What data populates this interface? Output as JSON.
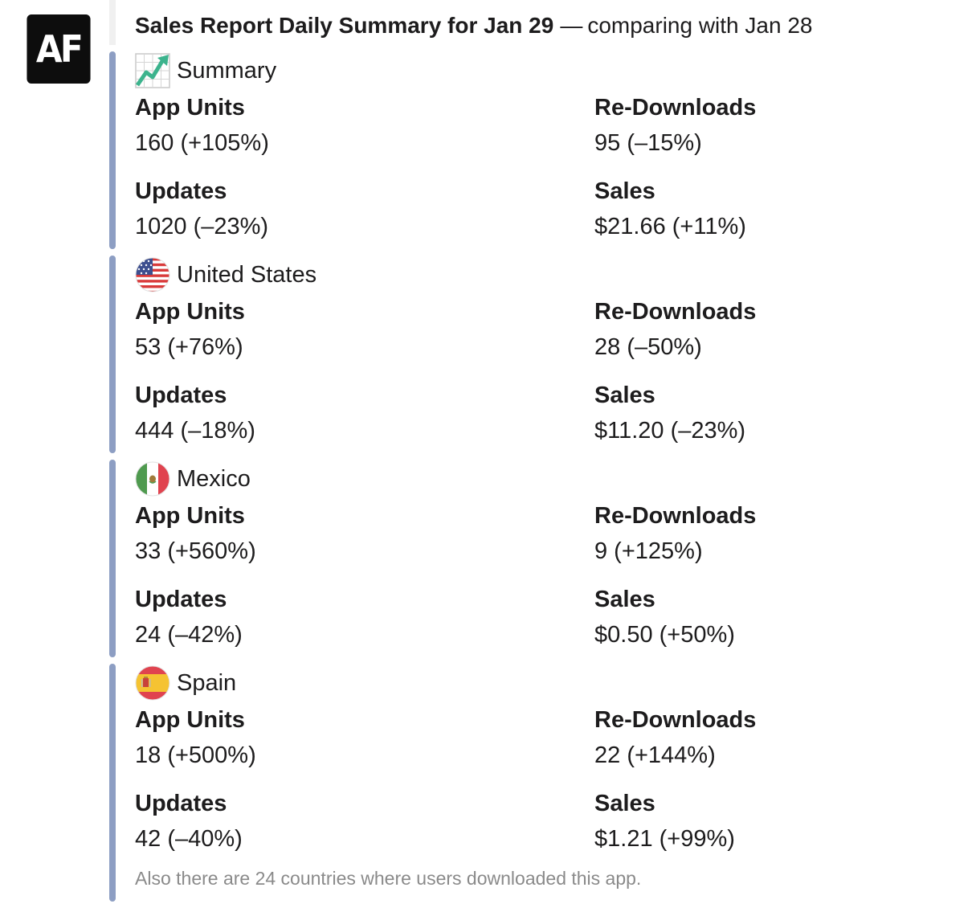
{
  "bot": {
    "avatar_text": "AF"
  },
  "header": {
    "title": "Sales Report Daily Summary for Jan 29",
    "separator": "—",
    "compare": "comparing with Jan 28"
  },
  "sections": [
    {
      "name": "Summary",
      "icon": "chart-increasing-icon",
      "app_units_label": "App Units",
      "app_units_value": "160 (+105%)",
      "redownloads_label": "Re-Downloads",
      "redownloads_value": "95 (–15%)",
      "updates_label": "Updates",
      "updates_value": "1020 (–23%)",
      "sales_label": "Sales",
      "sales_value": "$21.66 (+11%)"
    },
    {
      "name": "United States",
      "icon": "us-flag-icon",
      "app_units_label": "App Units",
      "app_units_value": "53 (+76%)",
      "redownloads_label": "Re-Downloads",
      "redownloads_value": "28 (–50%)",
      "updates_label": "Updates",
      "updates_value": "444 (–18%)",
      "sales_label": "Sales",
      "sales_value": "$11.20 (–23%)"
    },
    {
      "name": "Mexico",
      "icon": "mexico-flag-icon",
      "app_units_label": "App Units",
      "app_units_value": "33 (+560%)",
      "redownloads_label": "Re-Downloads",
      "redownloads_value": "9 (+125%)",
      "updates_label": "Updates",
      "updates_value": "24 (–42%)",
      "sales_label": "Sales",
      "sales_value": "$0.50 (+50%)"
    },
    {
      "name": "Spain",
      "icon": "spain-flag-icon",
      "app_units_label": "App Units",
      "app_units_value": "18 (+500%)",
      "redownloads_label": "Re-Downloads",
      "redownloads_value": "22 (+144%)",
      "updates_label": "Updates",
      "updates_value": "42 (–40%)",
      "sales_label": "Sales",
      "sales_value": "$1.21 (+99%)"
    }
  ],
  "footer": {
    "note": "Also there are 24 countries where users downloaded this app."
  },
  "colors": {
    "attachment_bar": "#8d9ec3",
    "footer_text": "#8a8a8a",
    "text": "#1d1c1d"
  }
}
